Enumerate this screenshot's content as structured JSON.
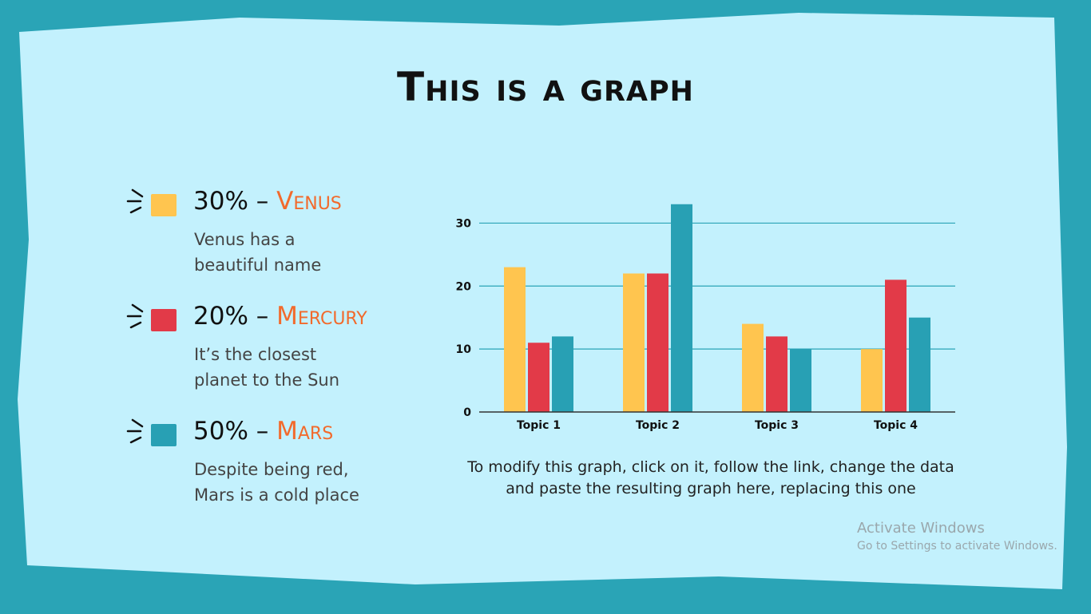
{
  "slide": {
    "title": "This is a graph",
    "caption": "To modify this graph, click on it, follow the link, change the data and paste the resulting graph here, replacing this one"
  },
  "legend": [
    {
      "percent": "30%",
      "sep": " – ",
      "name": "Venus",
      "description": "Venus has a\nbeautiful name",
      "color": "#ffc54f"
    },
    {
      "percent": "20%",
      "sep": " – ",
      "name": "Mercury",
      "description": "It’s the closest\nplanet to the Sun",
      "color": "#e23a48"
    },
    {
      "percent": "50%",
      "sep": " – ",
      "name": "Mars",
      "description": "Despite being red,\nMars is a cold place",
      "color": "#28a0b4"
    }
  ],
  "colors": {
    "background": "#c3f1fd",
    "frame": "#2aa4b6",
    "accent": "#f26a2c"
  },
  "chart_data": {
    "type": "bar",
    "categories": [
      "Topic 1",
      "Topic 2",
      "Topic 3",
      "Topic 4"
    ],
    "series": [
      {
        "values": [
          23,
          22,
          14,
          10
        ],
        "color": "#ffc54f"
      },
      {
        "values": [
          11,
          22,
          12,
          21
        ],
        "color": "#e23a48"
      },
      {
        "values": [
          12,
          33,
          10,
          15
        ],
        "color": "#28a0b4"
      }
    ],
    "ylim": [
      0,
      30
    ],
    "yticks": [
      0,
      10,
      20,
      30
    ],
    "grid": true
  },
  "watermark": {
    "line1": "Activate Windows",
    "line2": "Go to Settings to activate Windows."
  }
}
